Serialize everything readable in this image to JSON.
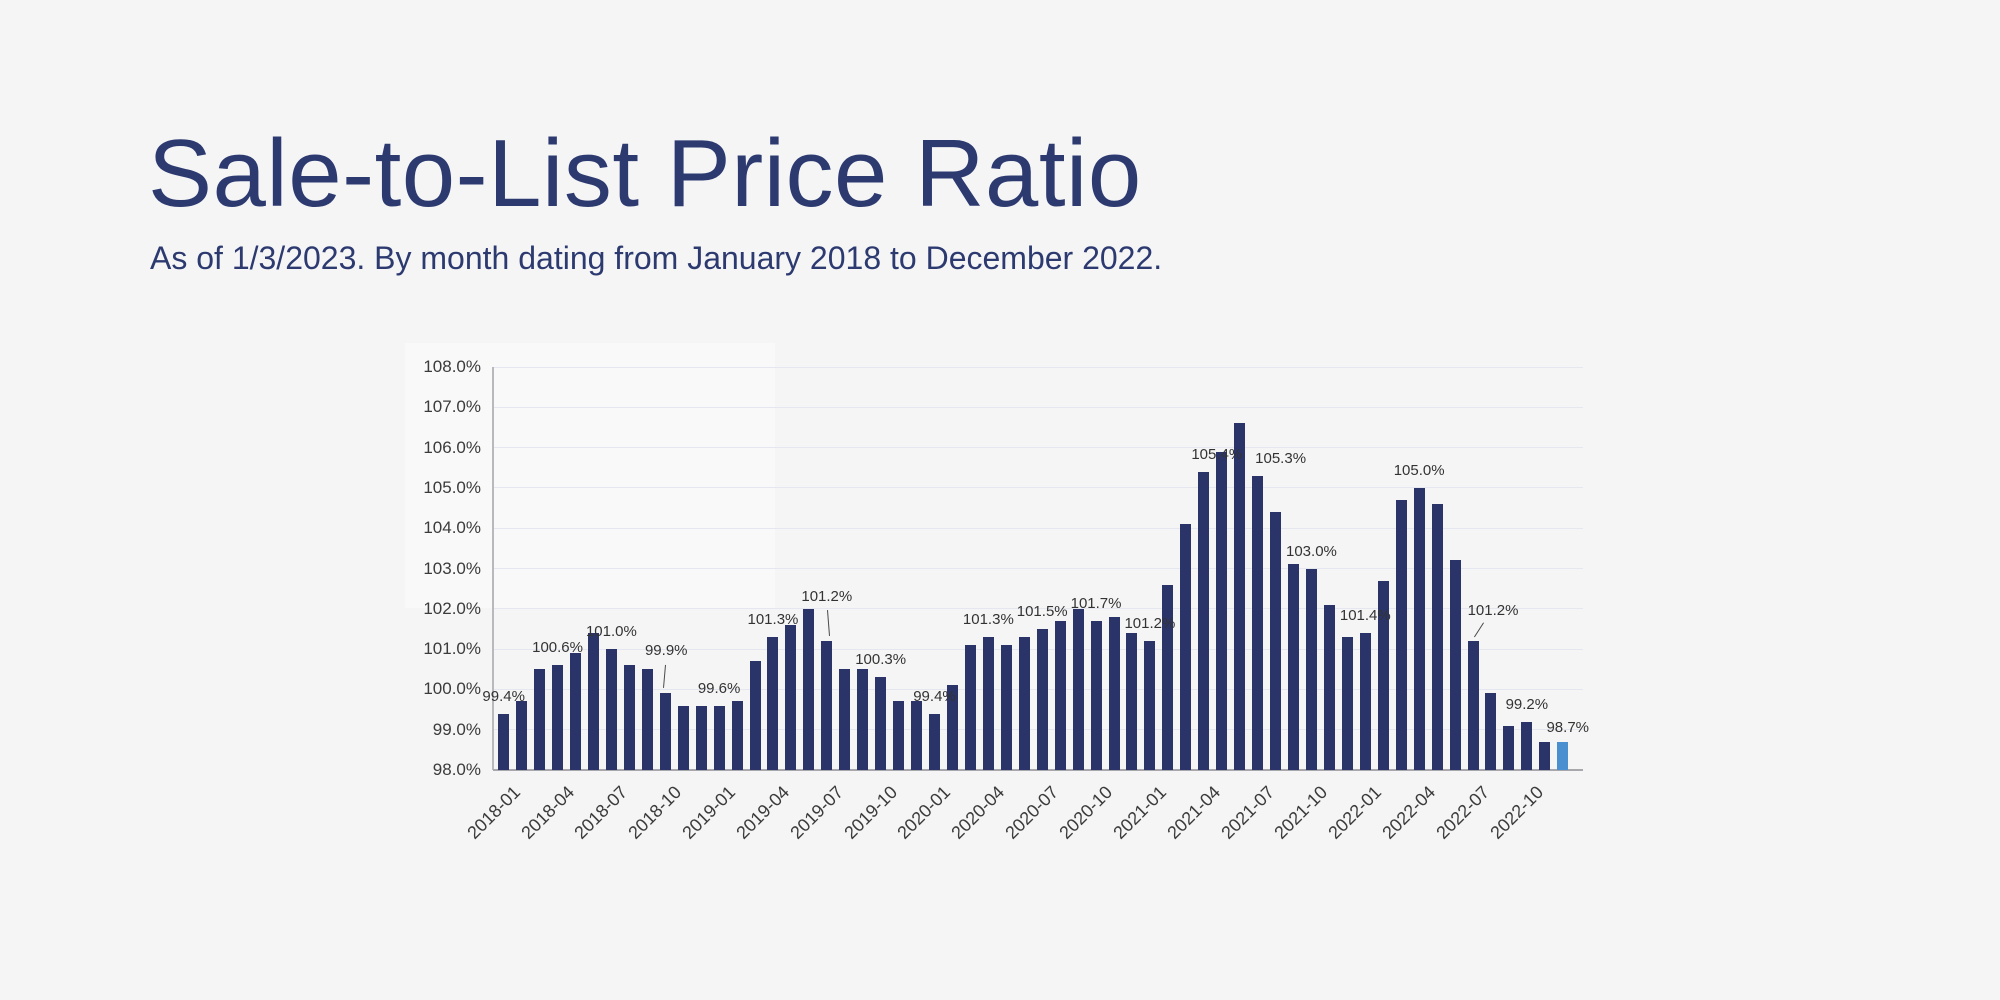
{
  "page": {
    "background": "#f5f5f6"
  },
  "header": {
    "title": "Sale-to-List Price Ratio",
    "subtitle": "As of 1/3/2023. By month dating from January 2018 to December 2022.",
    "title_color": "#2c3a70"
  },
  "chart_data": {
    "type": "bar",
    "title": "Sale-to-List Price Ratio",
    "subtitle": "As of 1/3/2023. By month dating from January 2018 to December 2022.",
    "unit": "percent",
    "grid": true,
    "legend": false,
    "xlabel": "",
    "ylabel": "",
    "ylim": [
      98,
      108
    ],
    "y_tick_step": 1,
    "y_tick_labels": [
      "98.0%",
      "99.0%",
      "100.0%",
      "101.0%",
      "102.0%",
      "103.0%",
      "104.0%",
      "105.0%",
      "106.0%",
      "107.0%",
      "108.0%"
    ],
    "x": [
      "2018-01",
      "2018-02",
      "2018-03",
      "2018-04",
      "2018-05",
      "2018-06",
      "2018-07",
      "2018-08",
      "2018-09",
      "2018-10",
      "2018-11",
      "2018-12",
      "2019-01",
      "2019-02",
      "2019-03",
      "2019-04",
      "2019-05",
      "2019-06",
      "2019-07",
      "2019-08",
      "2019-09",
      "2019-10",
      "2019-11",
      "2019-12",
      "2020-01",
      "2020-02",
      "2020-03",
      "2020-04",
      "2020-05",
      "2020-06",
      "2020-07",
      "2020-08",
      "2020-09",
      "2020-10",
      "2020-11",
      "2020-12",
      "2021-01",
      "2021-02",
      "2021-03",
      "2021-04",
      "2021-05",
      "2021-06",
      "2021-07",
      "2021-08",
      "2021-09",
      "2021-10",
      "2021-11",
      "2021-12",
      "2022-01",
      "2022-02",
      "2022-03",
      "2022-04",
      "2022-05",
      "2022-06",
      "2022-07",
      "2022-08",
      "2022-09",
      "2022-10",
      "2022-11",
      "2022-12"
    ],
    "values": [
      99.4,
      99.7,
      100.5,
      100.6,
      100.9,
      101.4,
      101.0,
      100.6,
      100.5,
      99.9,
      99.6,
      99.6,
      99.6,
      99.7,
      100.7,
      101.3,
      101.6,
      102.0,
      101.2,
      100.5,
      100.5,
      100.3,
      99.7,
      99.7,
      99.4,
      100.1,
      101.1,
      101.3,
      101.1,
      101.3,
      101.5,
      101.7,
      102.0,
      101.7,
      101.8,
      101.4,
      101.2,
      102.6,
      104.1,
      105.4,
      105.9,
      106.6,
      105.3,
      104.4,
      103.1,
      103.0,
      102.1,
      101.3,
      101.4,
      102.7,
      104.7,
      105.0,
      104.6,
      103.2,
      101.2,
      99.9,
      99.1,
      99.2,
      98.7,
      98.7
    ],
    "x_tick_labels": [
      "2018-01",
      "2018-04",
      "2018-07",
      "2018-10",
      "2019-01",
      "2019-04",
      "2019-07",
      "2019-10",
      "2020-01",
      "2020-04",
      "2020-07",
      "2020-10",
      "2021-01",
      "2021-04",
      "2021-07",
      "2021-10",
      "2022-01",
      "2022-04",
      "2022-07",
      "2022-10"
    ],
    "data_labels": [
      {
        "index": 0,
        "text": "99.4%"
      },
      {
        "index": 3,
        "text": "100.6%"
      },
      {
        "index": 6,
        "text": "101.0%"
      },
      {
        "index": 9,
        "text": "99.9%"
      },
      {
        "index": 12,
        "text": "99.6%"
      },
      {
        "index": 15,
        "text": "101.3%"
      },
      {
        "index": 18,
        "text": "101.2%"
      },
      {
        "index": 21,
        "text": "100.3%"
      },
      {
        "index": 24,
        "text": "99.4%"
      },
      {
        "index": 27,
        "text": "101.3%"
      },
      {
        "index": 30,
        "text": "101.5%"
      },
      {
        "index": 33,
        "text": "101.7%"
      },
      {
        "index": 36,
        "text": "101.2%"
      },
      {
        "index": 39,
        "text": "105.4%"
      },
      {
        "index": 42,
        "text": "105.3%"
      },
      {
        "index": 45,
        "text": "103.0%"
      },
      {
        "index": 48,
        "text": "101.4%"
      },
      {
        "index": 51,
        "text": "105.0%"
      },
      {
        "index": 54,
        "text": "101.2%"
      },
      {
        "index": 57,
        "text": "99.2%"
      },
      {
        "index": 59,
        "text": "98.7%"
      }
    ],
    "bar_color": "#2b3468",
    "highlight_bar": {
      "month": "2022-12",
      "color": "#4a90d1"
    }
  }
}
